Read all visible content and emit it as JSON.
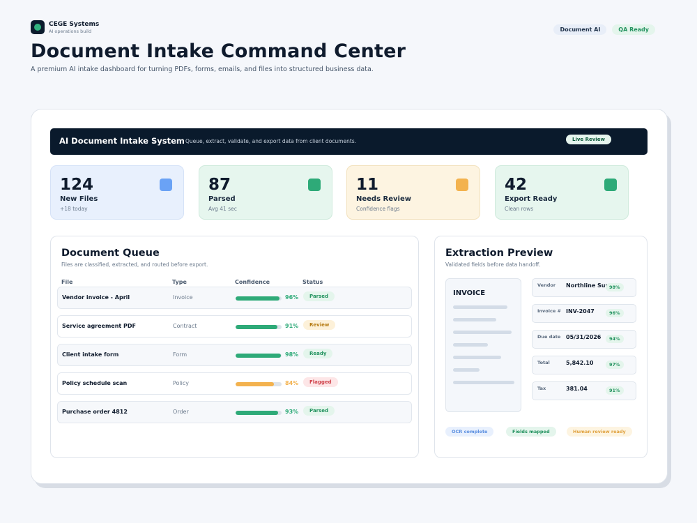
{
  "brand": {
    "name": "CEGE Systems",
    "subtitle": "AI operations build"
  },
  "header": {
    "badges": [
      "Document AI",
      "QA Ready"
    ],
    "title": "Document Intake Command Center",
    "subtitle": "A premium AI intake dashboard for turning PDFs, forms, emails, and files into structured business data."
  },
  "system_bar": {
    "title": "AI Document Intake System",
    "description": "Queue, extract, validate, and export data from client documents.",
    "live_label": "Live Review"
  },
  "stats": [
    {
      "value": "124",
      "label": "New Files",
      "sub": "+18 today",
      "color": "#6aa2f5"
    },
    {
      "value": "87",
      "label": "Parsed",
      "sub": "Avg 41 sec",
      "color": "#2eaa78"
    },
    {
      "value": "11",
      "label": "Needs Review",
      "sub": "Confidence flags",
      "color": "#f3b24e"
    },
    {
      "value": "42",
      "label": "Export Ready",
      "sub": "Clean rows",
      "color": "#2eaa78"
    }
  ],
  "queue": {
    "title": "Document Queue",
    "subtitle": "Files are classified, extracted, and routed before export.",
    "columns": [
      "File",
      "Type",
      "Confidence",
      "Status"
    ],
    "rows": [
      {
        "file": "Vendor invoice - April",
        "type": "Invoice",
        "confidence": 96,
        "confidence_label": "96%",
        "status": "Parsed",
        "bar_color": "#2eaa78",
        "status_color": "#23925f",
        "status_bg": "#e4f5ec"
      },
      {
        "file": "Service agreement PDF",
        "type": "Contract",
        "confidence": 91,
        "confidence_label": "91%",
        "status": "Review",
        "bar_color": "#2eaa78",
        "status_color": "#b57a12",
        "status_bg": "#fdf1d9"
      },
      {
        "file": "Client intake form",
        "type": "Form",
        "confidence": 98,
        "confidence_label": "98%",
        "status": "Ready",
        "bar_color": "#2eaa78",
        "status_color": "#23925f",
        "status_bg": "#e4f5ec"
      },
      {
        "file": "Policy schedule scan",
        "type": "Policy",
        "confidence": 84,
        "confidence_label": "84%",
        "status": "Flagged",
        "bar_color": "#f3b24e",
        "status_color": "#d0454d",
        "status_bg": "#fde6e7"
      },
      {
        "file": "Purchase order 4812",
        "type": "Order",
        "confidence": 93,
        "confidence_label": "93%",
        "status": "Parsed",
        "bar_color": "#2eaa78",
        "status_color": "#23925f",
        "status_bg": "#e4f5ec"
      }
    ]
  },
  "preview": {
    "title": "Extraction Preview",
    "subtitle": "Validated fields before data handoff.",
    "doc_title": "INVOICE",
    "fields": [
      {
        "label": "Vendor",
        "value": "Northline Supply",
        "confidence": "98%"
      },
      {
        "label": "Invoice #",
        "value": "INV-2047",
        "confidence": "96%"
      },
      {
        "label": "Due date",
        "value": "05/31/2026",
        "confidence": "94%"
      },
      {
        "label": "Total",
        "value": "5,842.10",
        "confidence": "97%"
      },
      {
        "label": "Tax",
        "value": "381.04",
        "confidence": "91%"
      }
    ],
    "tags": [
      {
        "label": "OCR complete",
        "color": "#5b8fe0",
        "bg": "#e8f0fd"
      },
      {
        "label": "Fields mapped",
        "color": "#23925f",
        "bg": "#e4f5ec"
      },
      {
        "label": "Human review ready",
        "color": "#e0a23f",
        "bg": "#fdf4e1"
      }
    ]
  }
}
